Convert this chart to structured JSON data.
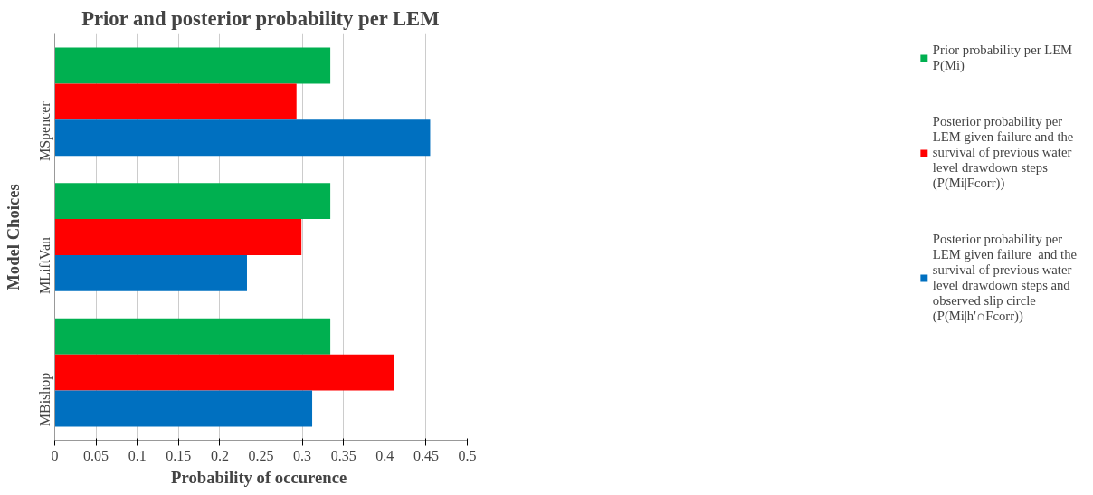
{
  "chart_data": {
    "type": "bar",
    "orientation": "horizontal",
    "title": "Prior and posterior probability per LEM",
    "xlabel": "Probability  of occurence",
    "ylabel": "Model Choices",
    "categories": [
      "MSpencer",
      "MLiftVan",
      "MBishop"
    ],
    "series": [
      {
        "name": "Prior probability per LEM P(Mi)",
        "color": "#00b050",
        "values": [
          0.334,
          0.334,
          0.334
        ]
      },
      {
        "name": "Posterior probability per LEM given failure and the survival of previous water level drawdown steps (P(Mi|Fcorr))",
        "color": "#ff0000",
        "values": [
          0.293,
          0.299,
          0.411
        ]
      },
      {
        "name": "Posterior probability per LEM given failure  and the survival of previous water level drawdown steps and observed slip circle (P(Mi|h'∩Fcorr))",
        "color": "#0070c0",
        "values": [
          0.455,
          0.233,
          0.312
        ]
      }
    ],
    "xlim": [
      0,
      0.5
    ],
    "xticks": [
      0,
      0.05,
      0.1,
      0.15,
      0.2,
      0.25,
      0.3,
      0.35,
      0.4,
      0.45,
      0.5
    ],
    "grid": "x",
    "legend": "right"
  }
}
